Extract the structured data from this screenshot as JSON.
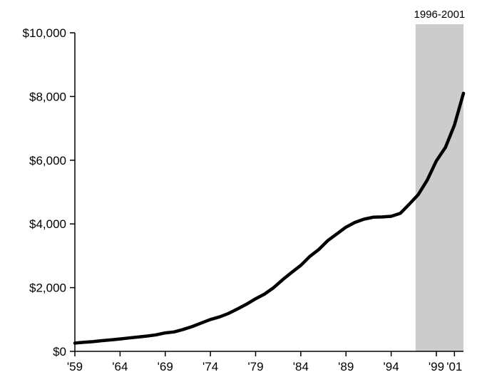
{
  "chart_data": {
    "type": "line",
    "title": "",
    "xlabel": "",
    "ylabel": "",
    "x_tick_labels": [
      "'59",
      "'64",
      "'69",
      "'74",
      "'79",
      "'84",
      "'89",
      "'94",
      "'99",
      "'01"
    ],
    "x_tick_years": [
      1959,
      1964,
      1969,
      1974,
      1979,
      1984,
      1989,
      1994,
      1999,
      2001
    ],
    "y_tick_labels": [
      "$0",
      "$2,000",
      "$4,000",
      "$6,000",
      "$8,000",
      "$10,000"
    ],
    "y_tick_values": [
      0,
      2000,
      4000,
      6000,
      8000,
      10000
    ],
    "xlim": [
      1959,
      2002
    ],
    "ylim": [
      0,
      10000
    ],
    "grid": false,
    "shaded_band": {
      "label": "1996-2001",
      "x_start": 1996.7,
      "x_end": 2002,
      "color": "#cccccc"
    },
    "series": [
      {
        "line_color": "#000000",
        "x": [
          1959,
          1960,
          1961,
          1962,
          1963,
          1964,
          1965,
          1966,
          1967,
          1968,
          1969,
          1970,
          1971,
          1972,
          1973,
          1974,
          1975,
          1976,
          1977,
          1978,
          1979,
          1980,
          1981,
          1982,
          1983,
          1984,
          1985,
          1986,
          1987,
          1988,
          1989,
          1990,
          1991,
          1992,
          1993,
          1994,
          1995,
          1996,
          1997,
          1998,
          1999,
          2000,
          2001,
          2002
        ],
        "y": [
          260,
          285,
          305,
          335,
          360,
          390,
          420,
          450,
          480,
          520,
          580,
          610,
          690,
          780,
          890,
          1000,
          1080,
          1190,
          1330,
          1480,
          1650,
          1800,
          2000,
          2250,
          2480,
          2700,
          2980,
          3200,
          3480,
          3690,
          3900,
          4050,
          4150,
          4210,
          4220,
          4240,
          4330,
          4620,
          4920,
          5380,
          5980,
          6400,
          7100,
          8100
        ]
      }
    ]
  }
}
